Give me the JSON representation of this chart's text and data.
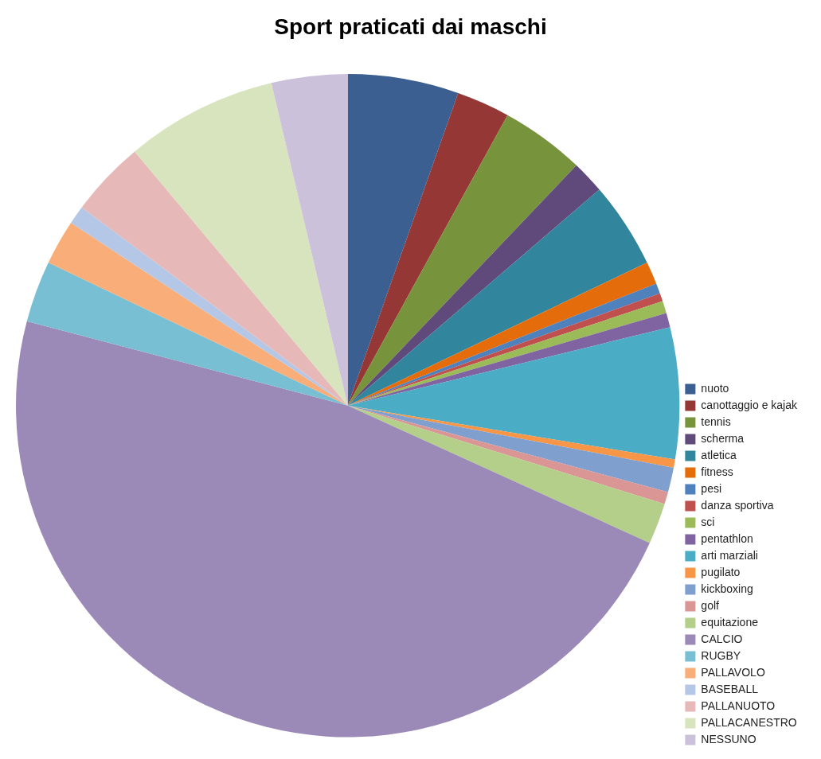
{
  "chart_data": {
    "type": "pie",
    "title": "Sport praticati dai maschi",
    "categories": [
      "nuoto",
      "canottaggio e kajak",
      "tennis",
      "scherma",
      "atletica",
      "fitness",
      "pesi",
      "danza sportiva",
      "sci",
      "pentathlon",
      "arti marziali",
      "pugilato",
      "kickboxing",
      "golf",
      "equitazione",
      "CALCIO",
      "RUGBY",
      "PALLAVOLO",
      "BASEBALL",
      "PALLANUOTO",
      "PALLACANESTRO",
      "NESSUNO"
    ],
    "values": [
      5.4,
      2.6,
      4.1,
      1.6,
      4.2,
      1.1,
      0.5,
      0.4,
      0.6,
      0.7,
      6.4,
      0.4,
      1.2,
      0.6,
      2.0,
      47.3,
      3.0,
      2.2,
      0.9,
      3.7,
      7.4,
      3.7
    ],
    "colors": [
      "#3b5f91",
      "#953735",
      "#77933c",
      "#604a7b",
      "#31859c",
      "#e46c0a",
      "#4f81bd",
      "#c0504d",
      "#9bbb59",
      "#8064a2",
      "#4bacc6",
      "#f79646",
      "#7f9fcf",
      "#d99694",
      "#b3cf8a",
      "#9b8ab8",
      "#79bfd3",
      "#f9ad78",
      "#b4c7e7",
      "#e6b9b8",
      "#d7e4bd",
      "#ccc1da"
    ],
    "legend": "right"
  }
}
